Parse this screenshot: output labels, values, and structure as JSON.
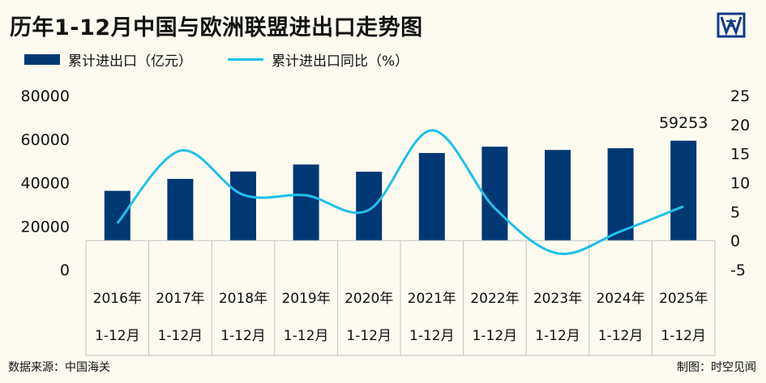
{
  "title": "历年1-12月中国与欧洲联盟进出口走势图",
  "footer": {
    "source": "数据来源：中国海关",
    "credit": "制图：时空见闻"
  },
  "logo_icon": "publisher-logo-icon",
  "colors": {
    "bar": "#003874",
    "line": "#1ec1ea"
  },
  "chart_data": {
    "type": "bar+line",
    "categories_line1": [
      "2016年",
      "2017年",
      "2018年",
      "2019年",
      "2020年",
      "2021年",
      "2022年",
      "2023年",
      "2024年",
      "2025年"
    ],
    "categories_line2": [
      "1-12月",
      "1-12月",
      "1-12月",
      "1-12月",
      "1-12月",
      "1-12月",
      "1-12月",
      "1-12月",
      "1-12月",
      "1-12月"
    ],
    "series": [
      {
        "name": "累计进出口（亿元）",
        "type": "bar",
        "axis": "left",
        "values": [
          36200,
          41700,
          45100,
          48300,
          45000,
          53600,
          56500,
          55000,
          55800,
          59253
        ]
      },
      {
        "name": "累计进出口同比（%）",
        "type": "line",
        "axis": "right",
        "values": [
          3.0,
          15.5,
          7.9,
          7.8,
          5.3,
          19.0,
          5.6,
          -2.2,
          1.6,
          5.9
        ]
      }
    ],
    "data_labels": [
      {
        "index": 9,
        "text": "59253"
      }
    ],
    "y_left": {
      "ylim": [
        0,
        80000
      ],
      "ticks": [
        "0",
        "20000",
        "40000",
        "60000",
        "80000"
      ]
    },
    "y_right": {
      "ylim": [
        -5,
        25
      ],
      "ticks": [
        "-5",
        "0",
        "5",
        "10",
        "15",
        "20",
        "25"
      ]
    },
    "legend": "top-left",
    "grid": false
  }
}
